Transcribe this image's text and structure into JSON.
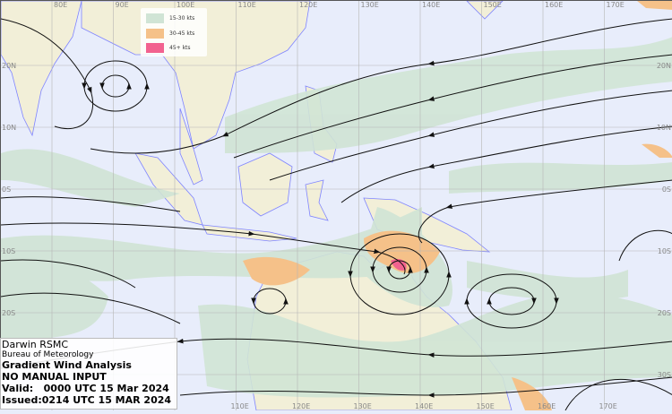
{
  "colors": {
    "ocean": "#e8edfb",
    "land": "#f2efd8",
    "coastline": "#7f84ff",
    "wind_15_30": "#d0e4d5",
    "wind_30_45": "#f5c189",
    "wind_45_plus": "#f2628f"
  },
  "legend": [
    {
      "label": "15-30 kts",
      "color": "#d0e4d5"
    },
    {
      "label": "30-45 kts",
      "color": "#f5c189"
    },
    {
      "label": "45+ kts",
      "color": "#f2628f"
    }
  ],
  "info": {
    "office": "Darwin RSMC",
    "agency": "Bureau of Meteorology",
    "product": "Gradient Wind Analysis",
    "note": "NO MANUAL INPUT",
    "valid": "Valid:   0000 UTC 15 Mar 2024",
    "issued": "Issued:0214 UTC 15 MAR 2024"
  },
  "longitudes_top": [
    "80E",
    "90E",
    "100E",
    "110E",
    "120E",
    "130E",
    "140E",
    "150E",
    "160E",
    "170E"
  ],
  "longitudes_bottom": [
    "110E",
    "120E",
    "130E",
    "140E",
    "150E",
    "160E",
    "170E"
  ],
  "latitudes_right": [
    "20N",
    "10N",
    "0S",
    "10S",
    "20S",
    "30S"
  ],
  "latitudes_left": [
    "20N",
    "10N",
    "0S",
    "10S",
    "20S"
  ]
}
